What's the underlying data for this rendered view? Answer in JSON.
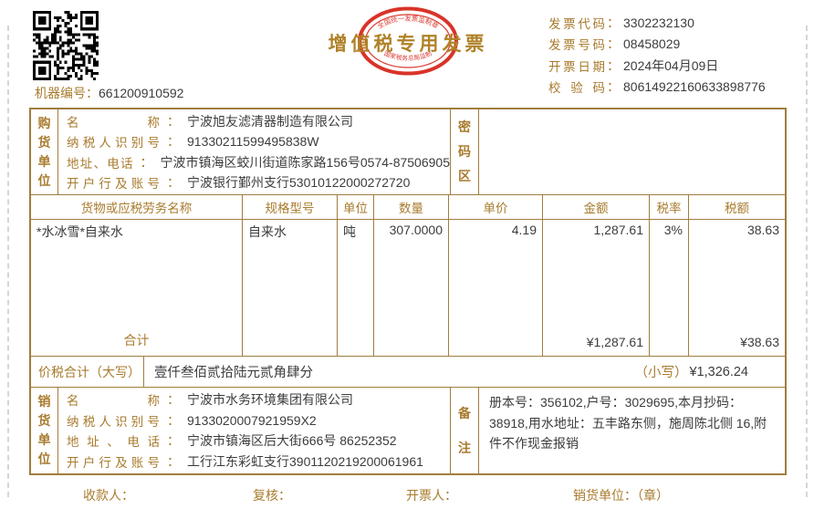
{
  "colon": "：",
  "header": {
    "machine_label": "机器编号",
    "machine_value": "661200910592",
    "title": "增值税专用发票",
    "stamp": {
      "arc_top": "全国统一发票监制章",
      "arc_bottom": "国家税务总局监制"
    },
    "codes": [
      {
        "label": "发票代码",
        "value": "3302232130"
      },
      {
        "label": "发票号码",
        "value": "08458029"
      },
      {
        "label": "开票日期",
        "value": "2024年04月09日"
      },
      {
        "label": "校验码",
        "value": "80614922160633898776"
      }
    ]
  },
  "buyer": {
    "side_label": "购货单位",
    "password_label": "密码区",
    "rows": [
      {
        "label": "名称",
        "value": "宁波旭友滤清器制造有限公司"
      },
      {
        "label": "纳税人识别号",
        "value": "91330211599495838W"
      },
      {
        "label": "地址、电话",
        "value": "宁波市镇海区蛟川街道陈家路156号0574-87506905"
      },
      {
        "label": "开户行及账号",
        "value": "宁波银行鄞州支行53010122000272720"
      }
    ]
  },
  "table": {
    "columns": [
      "货物或应税劳务名称",
      "规格型号",
      "单位",
      "数量",
      "单价",
      "金额",
      "税率",
      "税额"
    ],
    "items": [
      [
        "*水冰雪*自来水",
        "自来水",
        "吨",
        "307.0000",
        "4.19",
        "1,287.61",
        "3%",
        "38.63"
      ]
    ],
    "total_label": "合计",
    "total_amount": "¥1,287.61",
    "total_tax": "¥38.63"
  },
  "summary": {
    "label": "价税合计（大写）",
    "amount_words": "壹仟叁佰贰拾陆元贰角肆分",
    "small_label": "（小写）",
    "amount_figures": "¥1,326.24"
  },
  "seller": {
    "side_label": "销货单位",
    "remark_label": "备注",
    "remark_content": "册本号：356102,户号：3029695,本月抄码：38918,用水地址：五丰路东侧，施周陈北侧 16,附件不作现金报销",
    "rows": [
      {
        "label": "名称",
        "value": "宁波市水务环境集团有限公司"
      },
      {
        "label": "纳税人识别号",
        "value": "9133020007921959X2"
      },
      {
        "label": "地址、电话",
        "value": "宁波市镇海区后大街666号 86252352"
      },
      {
        "label": "开户行及账号",
        "value": "工行江东彩虹支行3901120219200061961"
      }
    ]
  },
  "footer": {
    "payee": "收款人：",
    "review": "复核：",
    "drawer": "开票人：",
    "seal": "销货单位：（章）"
  }
}
